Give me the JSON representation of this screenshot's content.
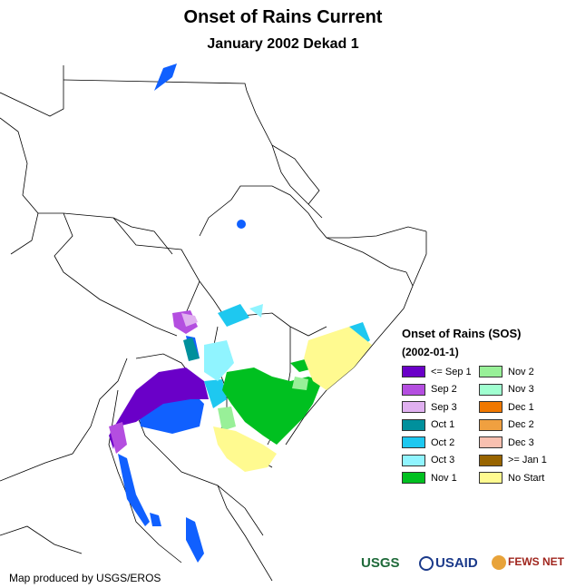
{
  "title": "Onset of Rains Current",
  "subtitle": "January 2002 Dekad 1",
  "legend": {
    "title": "Onset of Rains (SOS)",
    "date": "(2002-01-1)",
    "items": [
      {
        "label": "<= Sep 1",
        "color": "#6a00c8"
      },
      {
        "label": "Sep 2",
        "color": "#b44ee0"
      },
      {
        "label": "Sep 3",
        "color": "#e0b0f0"
      },
      {
        "label": "Oct 1",
        "color": "#00909c"
      },
      {
        "label": "Oct 2",
        "color": "#1ec8f0"
      },
      {
        "label": "Oct 3",
        "color": "#90f4ff"
      },
      {
        "label": "Nov 1",
        "color": "#00c020"
      },
      {
        "label": "Nov 2",
        "color": "#98f098"
      },
      {
        "label": "Nov 3",
        "color": "#a0ffd0"
      },
      {
        "label": "Dec 1",
        "color": "#f07800"
      },
      {
        "label": "Dec 2",
        "color": "#f0a040"
      },
      {
        "label": "Dec 3",
        "color": "#f8c0b0"
      },
      {
        "label": ">= Jan 1",
        "color": "#986400"
      },
      {
        "label": "No Start",
        "color": "#fffa90"
      }
    ]
  },
  "credit": "Map produced by USGS/EROS",
  "logos": {
    "usgs": "USGS",
    "usaid": "USAID",
    "fews": "FEWS NET"
  },
  "colors": {
    "border": "#000000",
    "water": "#1060ff",
    "land": "#ffffff"
  }
}
